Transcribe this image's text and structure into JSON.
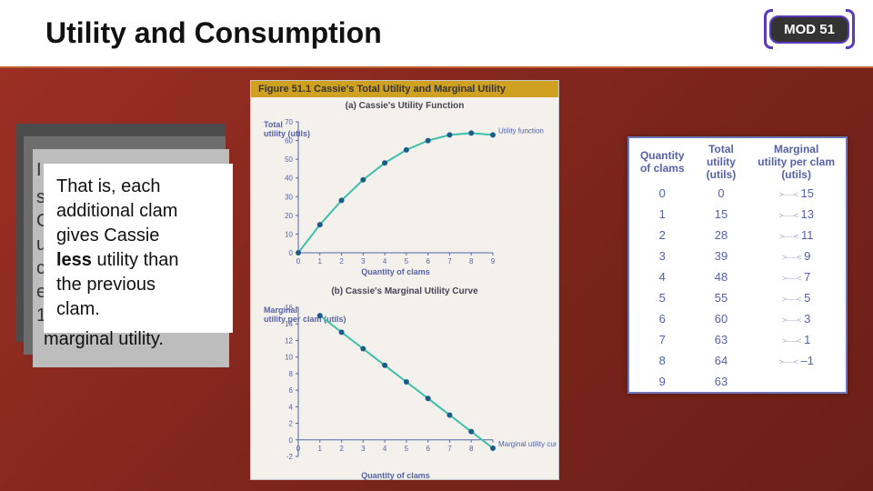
{
  "title": "Utility and Consumption",
  "mod_label": "MOD 51",
  "text_stack": {
    "fragment_left_top": "I",
    "fragment_left_s": "s",
    "fragment_left_c1": "C",
    "fragment_left_u": "u",
    "fragment_left_c2": "c",
    "fragment_left_e": "e",
    "fragment_left_1": "1",
    "line1": "That is, each",
    "line2": "additional clam",
    "line3": "gives Cassie",
    "line4_a": "less",
    "line4_b": " utility than",
    "line5": "the previous",
    "line6": "clam.",
    "trailing": "marginal utility."
  },
  "figure": {
    "header": "Figure 51.1  Cassie's Total Utility and Marginal Utility",
    "panel_a_title": "(a) Cassie's Utility Function",
    "panel_b_title": "(b) Cassie's Marginal Utility Curve",
    "utility_chart": {
      "type": "line",
      "x_values": [
        0,
        1,
        2,
        3,
        4,
        5,
        6,
        7,
        8,
        9
      ],
      "y_values": [
        0,
        15,
        28,
        39,
        48,
        55,
        60,
        63,
        64,
        63
      ],
      "x_label": "Quantity of clams",
      "y_label": "Total utility (utils)",
      "ylim": [
        0,
        70
      ],
      "ytick_step": 10,
      "xlim": [
        0,
        9
      ],
      "xtick_step": 1,
      "line_color": "#3dbfa9",
      "point_color": "#1b5c8a",
      "point_radius": 3,
      "line_width": 2,
      "annotation": "Utility function",
      "background_color": "#f4f1ec",
      "grid": false
    },
    "marginal_chart": {
      "type": "line",
      "x_values": [
        1,
        2,
        3,
        4,
        5,
        6,
        7,
        8,
        9
      ],
      "y_values": [
        15,
        13,
        11,
        9,
        7,
        5,
        3,
        1,
        -1
      ],
      "x_label": "Quantity of clams",
      "y_label": "Marginal utility per clam (utils)",
      "ylim": [
        -2,
        16
      ],
      "ytick_step": 2,
      "xlim": [
        0,
        9
      ],
      "xtick_step": 1,
      "line_color": "#3dbfa9",
      "point_color": "#1b5c8a",
      "point_radius": 3,
      "line_width": 2,
      "annotation": "Marginal utility curve",
      "background_color": "#f4f1ec",
      "grid": false
    }
  },
  "table": {
    "col1_a": "Quantity",
    "col1_b": "of clams",
    "col2_a": "Total",
    "col2_b": "utility",
    "col2_c": "(utils)",
    "col3_a": "Marginal",
    "col3_b": "utility per clam",
    "col3_c": "(utils)",
    "zig": ">······<",
    "rows": [
      {
        "q": "0",
        "tu": "0",
        "mu": "15"
      },
      {
        "q": "1",
        "tu": "15",
        "mu": "13"
      },
      {
        "q": "2",
        "tu": "28",
        "mu": "11"
      },
      {
        "q": "3",
        "tu": "39",
        "mu": "9"
      },
      {
        "q": "4",
        "tu": "48",
        "mu": "7"
      },
      {
        "q": "5",
        "tu": "55",
        "mu": "5"
      },
      {
        "q": "6",
        "tu": "60",
        "mu": "3"
      },
      {
        "q": "7",
        "tu": "63",
        "mu": "1"
      },
      {
        "q": "8",
        "tu": "64",
        "mu": "–1"
      },
      {
        "q": "9",
        "tu": "63",
        "mu": ""
      }
    ]
  },
  "colors": {
    "slide_bg_from": "#9e3025",
    "slide_bg_to": "#6b1f17",
    "accent": "#5a3bbf",
    "table_border": "#6a78b5",
    "table_text": "#5562a8"
  }
}
